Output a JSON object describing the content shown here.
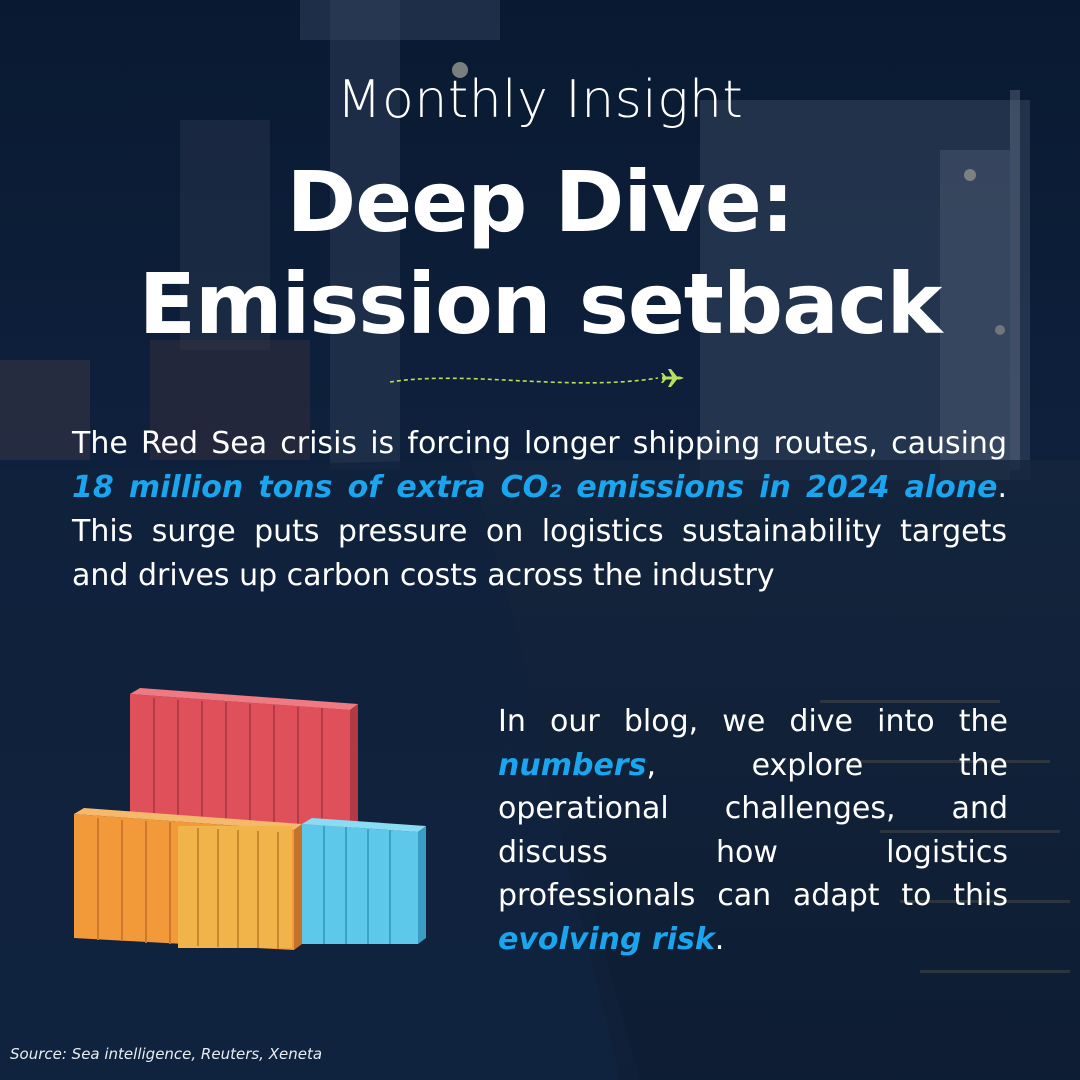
{
  "header": {
    "subtitle": "Monthly Insight",
    "title_line1": "Deep Dive:",
    "title_line2": "Emission setback"
  },
  "divider": {
    "icon": "airplane-icon"
  },
  "intro": {
    "text_before": "The Red Sea crisis is forcing longer shipping routes, causing ",
    "highlight": "18 million tons of extra CO₂ emissions in 2024 alone",
    "text_after": ". This surge puts pressure on logistics sustainability targets and drives up carbon costs across the industry"
  },
  "blog": {
    "text1": "In our blog, we dive into the ",
    "highlight1": "numbers",
    "text2": ", explore the operational challenges, and discuss how logistics professionals can adapt to this ",
    "highlight2": "evolving risk",
    "text3": "."
  },
  "illustration": {
    "icon": "shipping-containers-icon"
  },
  "source": "Source: Sea intelligence, Reuters, Xeneta",
  "colors": {
    "background": "#13284a",
    "highlight": "#1aa5ee",
    "text": "#ffffff",
    "container_red": "#e0505a",
    "container_orange": "#f29a3a",
    "container_blue": "#5ec8ea",
    "divider_green": "#b8e05a"
  }
}
